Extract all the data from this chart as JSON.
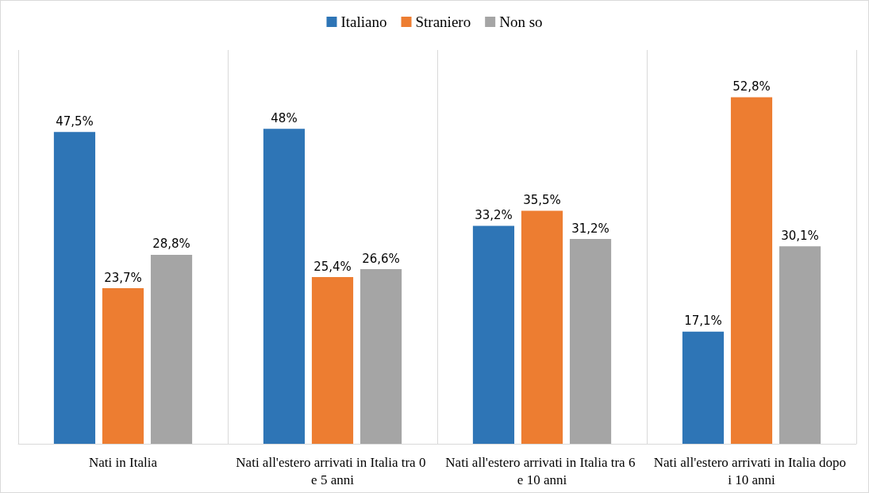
{
  "chart_data": {
    "type": "bar",
    "categories": [
      "Nati in Italia",
      "Nati all'estero arrivati in Italia tra 0 e 5 anni",
      "Nati all'estero arrivati in Italia tra 6 e 10 anni",
      "Nati all'estero arrivati in Italia dopo i 10 anni"
    ],
    "series": [
      {
        "name": "Italiano",
        "color": "#2e75b6",
        "values": [
          47.5,
          48,
          33.2,
          17.1
        ],
        "value_labels": [
          "47,5%",
          "48%",
          "33,2%",
          "17,1%"
        ]
      },
      {
        "name": "Straniero",
        "color": "#ed7d31",
        "values": [
          23.7,
          25.4,
          35.5,
          52.8
        ],
        "value_labels": [
          "23,7%",
          "25,4%",
          "35,5%",
          "52,8%"
        ]
      },
      {
        "name": "Non so",
        "color": "#a5a5a5",
        "values": [
          28.8,
          26.6,
          31.2,
          30.1
        ],
        "value_labels": [
          "28,8%",
          "26,6%",
          "31,2%",
          "30,1%"
        ]
      }
    ],
    "legend": "top",
    "grid": "x"
  }
}
